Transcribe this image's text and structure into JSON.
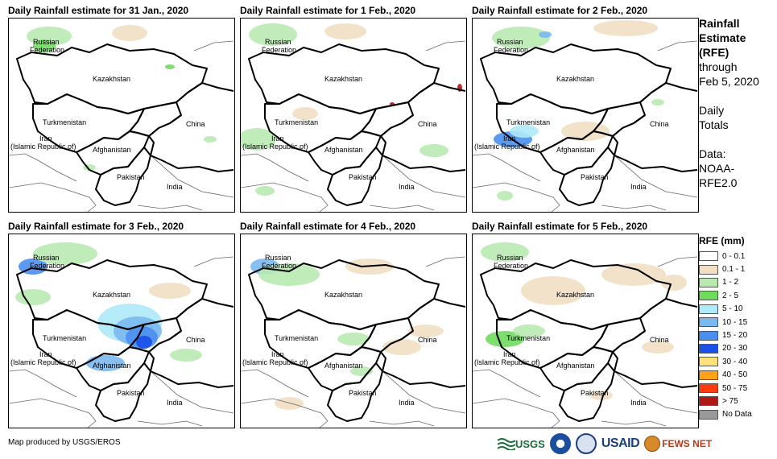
{
  "panels": [
    {
      "title": "Daily Rainfall estimate for 31 Jan., 2020"
    },
    {
      "title": "Daily Rainfall estimate for 1 Feb., 2020"
    },
    {
      "title": "Daily Rainfall estimate for 2 Feb., 2020"
    },
    {
      "title": "Daily Rainfall estimate for 3 Feb., 2020"
    },
    {
      "title": "Daily Rainfall estimate for 4 Feb., 2020"
    },
    {
      "title": "Daily Rainfall estimate for 5 Feb., 2020"
    }
  ],
  "country_labels": {
    "russia_line1": "Russian",
    "russia_line2": "Federation",
    "kazakhstan": "Kazakhstan",
    "turkmenistan": "Turkmenistan",
    "iran_line1": "Iran",
    "iran_line2": "(Islamic Republic of)",
    "afghanistan": "Afghanistan",
    "pakistan": "Pakistan",
    "china": "China",
    "india": "India"
  },
  "side_info": {
    "title_line1": "Rainfall",
    "title_line2": "Estimate",
    "title_line3": "(RFE)",
    "through_line1": "through",
    "through_line2": "Feb 5, 2020",
    "totals_line1": "Daily",
    "totals_line2": "Totals",
    "data_line1": "Data:",
    "data_line2": "NOAA-",
    "data_line3": "RFE2.0"
  },
  "legend": {
    "title": "RFE (mm)",
    "items": [
      {
        "label": "0 - 0.1",
        "color": "#ffffff"
      },
      {
        "label": "0.1 - 1",
        "color": "#f1dfc4"
      },
      {
        "label": "1 - 2",
        "color": "#b8eab0"
      },
      {
        "label": "2 - 5",
        "color": "#6fdc5e"
      },
      {
        "label": "5 - 10",
        "color": "#aeeaf8"
      },
      {
        "label": "10 - 15",
        "color": "#7ab8f0"
      },
      {
        "label": "15 - 20",
        "color": "#4a8ef0"
      },
      {
        "label": "20 - 30",
        "color": "#1a50e8"
      },
      {
        "label": "30 - 40",
        "color": "#ffe27a"
      },
      {
        "label": "40 - 50",
        "color": "#ffa21a"
      },
      {
        "label": "50 - 75",
        "color": "#ff3a10"
      },
      {
        "label": "> 75",
        "color": "#b01818"
      },
      {
        "label": "No Data",
        "color": "#999999"
      }
    ]
  },
  "footer": {
    "credit": "Map produced by USGS/EROS",
    "logos": {
      "usgs": "USGS",
      "usaid": "USAID",
      "fewsnet": "FEWS NET"
    }
  }
}
